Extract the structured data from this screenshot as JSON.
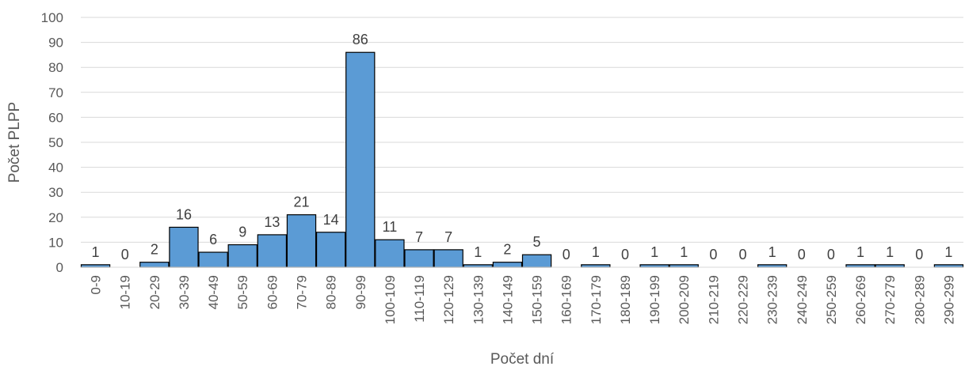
{
  "chart_data": {
    "type": "bar",
    "categories": [
      "0-9",
      "10-19",
      "20-29",
      "30-39",
      "40-49",
      "50-59",
      "60-69",
      "70-79",
      "80-89",
      "90-99",
      "100-109",
      "110-119",
      "120-129",
      "130-139",
      "140-149",
      "150-159",
      "160-169",
      "170-179",
      "180-189",
      "190-199",
      "200-209",
      "210-219",
      "220-229",
      "230-239",
      "240-249",
      "250-259",
      "260-269",
      "270-279",
      "280-289",
      "290-299"
    ],
    "values": [
      1,
      0,
      2,
      16,
      6,
      9,
      13,
      21,
      14,
      86,
      11,
      7,
      7,
      1,
      2,
      5,
      0,
      1,
      0,
      1,
      1,
      0,
      0,
      1,
      0,
      0,
      1,
      1,
      0,
      1
    ],
    "xlabel": "Počet dní",
    "ylabel": "Počet PLPP",
    "ylim": [
      0,
      100
    ],
    "yticks": [
      0,
      10,
      20,
      30,
      40,
      50,
      60,
      70,
      80,
      90,
      100
    ],
    "grid": true,
    "bar_color": "#5B9BD5",
    "bar_edge_color": "#000000",
    "grid_color": "#D9D9D9",
    "data_labels": true
  }
}
